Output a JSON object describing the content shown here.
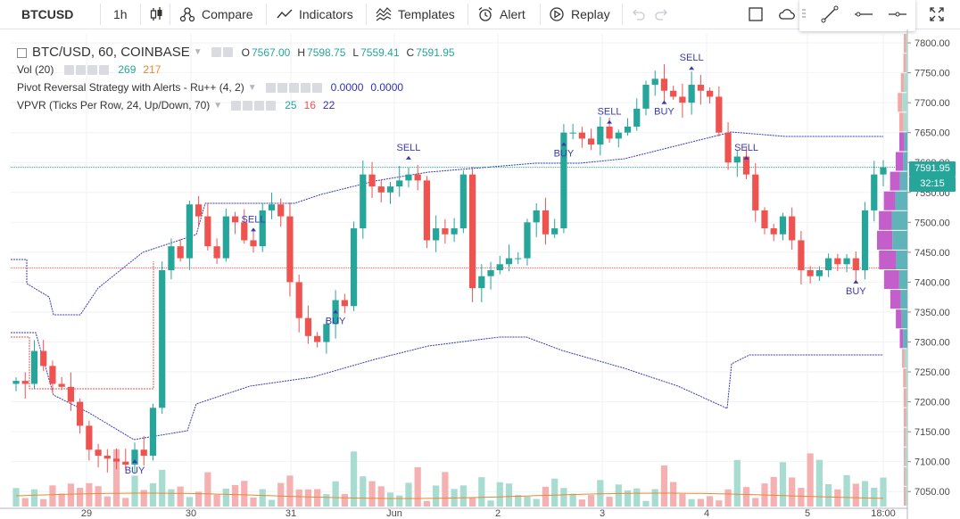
{
  "toolbar": {
    "symbol": "BTCUSD",
    "interval": "1h",
    "compare_label": "Compare",
    "indicators_label": "Indicators",
    "templates_label": "Templates",
    "alert_label": "Alert",
    "replay_label": "Replay"
  },
  "legend": {
    "main_title": "BTC/USD, 60, COINBASE",
    "o_label": "O",
    "o_value": "7567.00",
    "h_label": "H",
    "h_value": "7598.75",
    "l_label": "L",
    "l_value": "7559.41",
    "c_label": "C",
    "c_value": "7591.95",
    "vol_title": "Vol (20)",
    "vol_v1": "269",
    "vol_v2": "217",
    "pivot_title": "Pivot Reversal Strategy with Alerts - Ru++ (4, 2)",
    "pivot_v1": "0.0000",
    "pivot_v2": "0.0000",
    "vpvr_title": "VPVR (Ticks Per Row, 24, Up/Down, 70)",
    "vpvr_v1": "25",
    "vpvr_v2": "16",
    "vpvr_v3": "22"
  },
  "price_axis": {
    "ticks": [
      "7800.00",
      "7750.00",
      "7700.00",
      "7650.00",
      "7600.00",
      "7550.00",
      "7500.00",
      "7450.00",
      "7400.00",
      "7350.00",
      "7300.00",
      "7250.00",
      "7200.00",
      "7150.00",
      "7100.00",
      "7050.00"
    ],
    "last_price_tag": "7591.95",
    "countdown_tag": "32:15"
  },
  "time_axis": {
    "ticks": [
      "29",
      "30",
      "31",
      "Jun",
      "2",
      "3",
      "4",
      "5",
      "18:00"
    ]
  },
  "signals": [
    "SELL",
    "SELL",
    "SELL",
    "SELL",
    "SELL",
    "BUY",
    "BUY",
    "BUY",
    "BUY",
    "BUY"
  ],
  "colors": {
    "up": "#26a69a",
    "down": "#ef5350",
    "vpvr_up": "#5fb4b9",
    "vpvr_down": "#c45ecb",
    "signal": "#3a3ab0",
    "band": "#3a3ab0",
    "ma": "#e8892f"
  },
  "chart_data": {
    "type": "candlestick",
    "title": "BTC/USD, 60, COINBASE",
    "ylim": [
      7025,
      7815
    ],
    "x_ticks": [
      "29",
      "30",
      "31",
      "Jun",
      "2",
      "3",
      "4",
      "5",
      "18:00"
    ],
    "close": [
      7235,
      7230,
      7285,
      7260,
      7230,
      7225,
      7200,
      7160,
      7120,
      7110,
      7105,
      7100,
      7095,
      7120,
      7110,
      7190,
      7420,
      7460,
      7440,
      7530,
      7510,
      7460,
      7440,
      7510,
      7500,
      7470,
      7460,
      7520,
      7530,
      7510,
      7400,
      7340,
      7310,
      7300,
      7330,
      7370,
      7360,
      7490,
      7580,
      7560,
      7550,
      7560,
      7570,
      7580,
      7570,
      7470,
      7490,
      7480,
      7490,
      7580,
      7390,
      7410,
      7420,
      7430,
      7440,
      7440,
      7500,
      7520,
      7480,
      7490,
      7650,
      7650,
      7640,
      7630,
      7660,
      7640,
      7650,
      7660,
      7690,
      7730,
      7740,
      7720,
      7710,
      7700,
      7730,
      7720,
      7710,
      7650,
      7600,
      7610,
      7580,
      7520,
      7490,
      7480,
      7510,
      7470,
      7420,
      7410,
      7420,
      7440,
      7430,
      7440,
      7420,
      7520,
      7580,
      7592
    ],
    "volume_approx_ma": 80
  }
}
